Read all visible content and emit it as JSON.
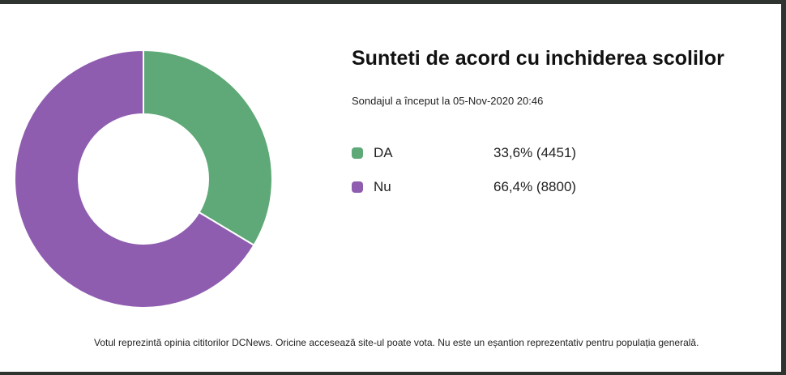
{
  "poll": {
    "title": "Sunteti de acord cu inchiderea scolilor",
    "subtitle": "Sondajul a început la 05-Nov-2020 20:46",
    "options": [
      {
        "label": "DA",
        "value_text": "33,6% (4451)",
        "color": "#5ea977"
      },
      {
        "label": "Nu",
        "value_text": "66,4% (8800)",
        "color": "#8f5db0"
      }
    ],
    "disclaimer": "Votul reprezintă opinia cititorilor DCNews. Oricine accesează site-ul poate vota. Nu este un eșantion reprezentativ pentru populația generală."
  },
  "chart_data": {
    "type": "pie",
    "style": "donut",
    "categories": [
      "DA",
      "Nu"
    ],
    "values": [
      4451,
      8800
    ],
    "percentages": [
      33.6,
      66.4
    ],
    "colors": [
      "#5ea977",
      "#8f5db0"
    ],
    "legend_position": "right"
  }
}
